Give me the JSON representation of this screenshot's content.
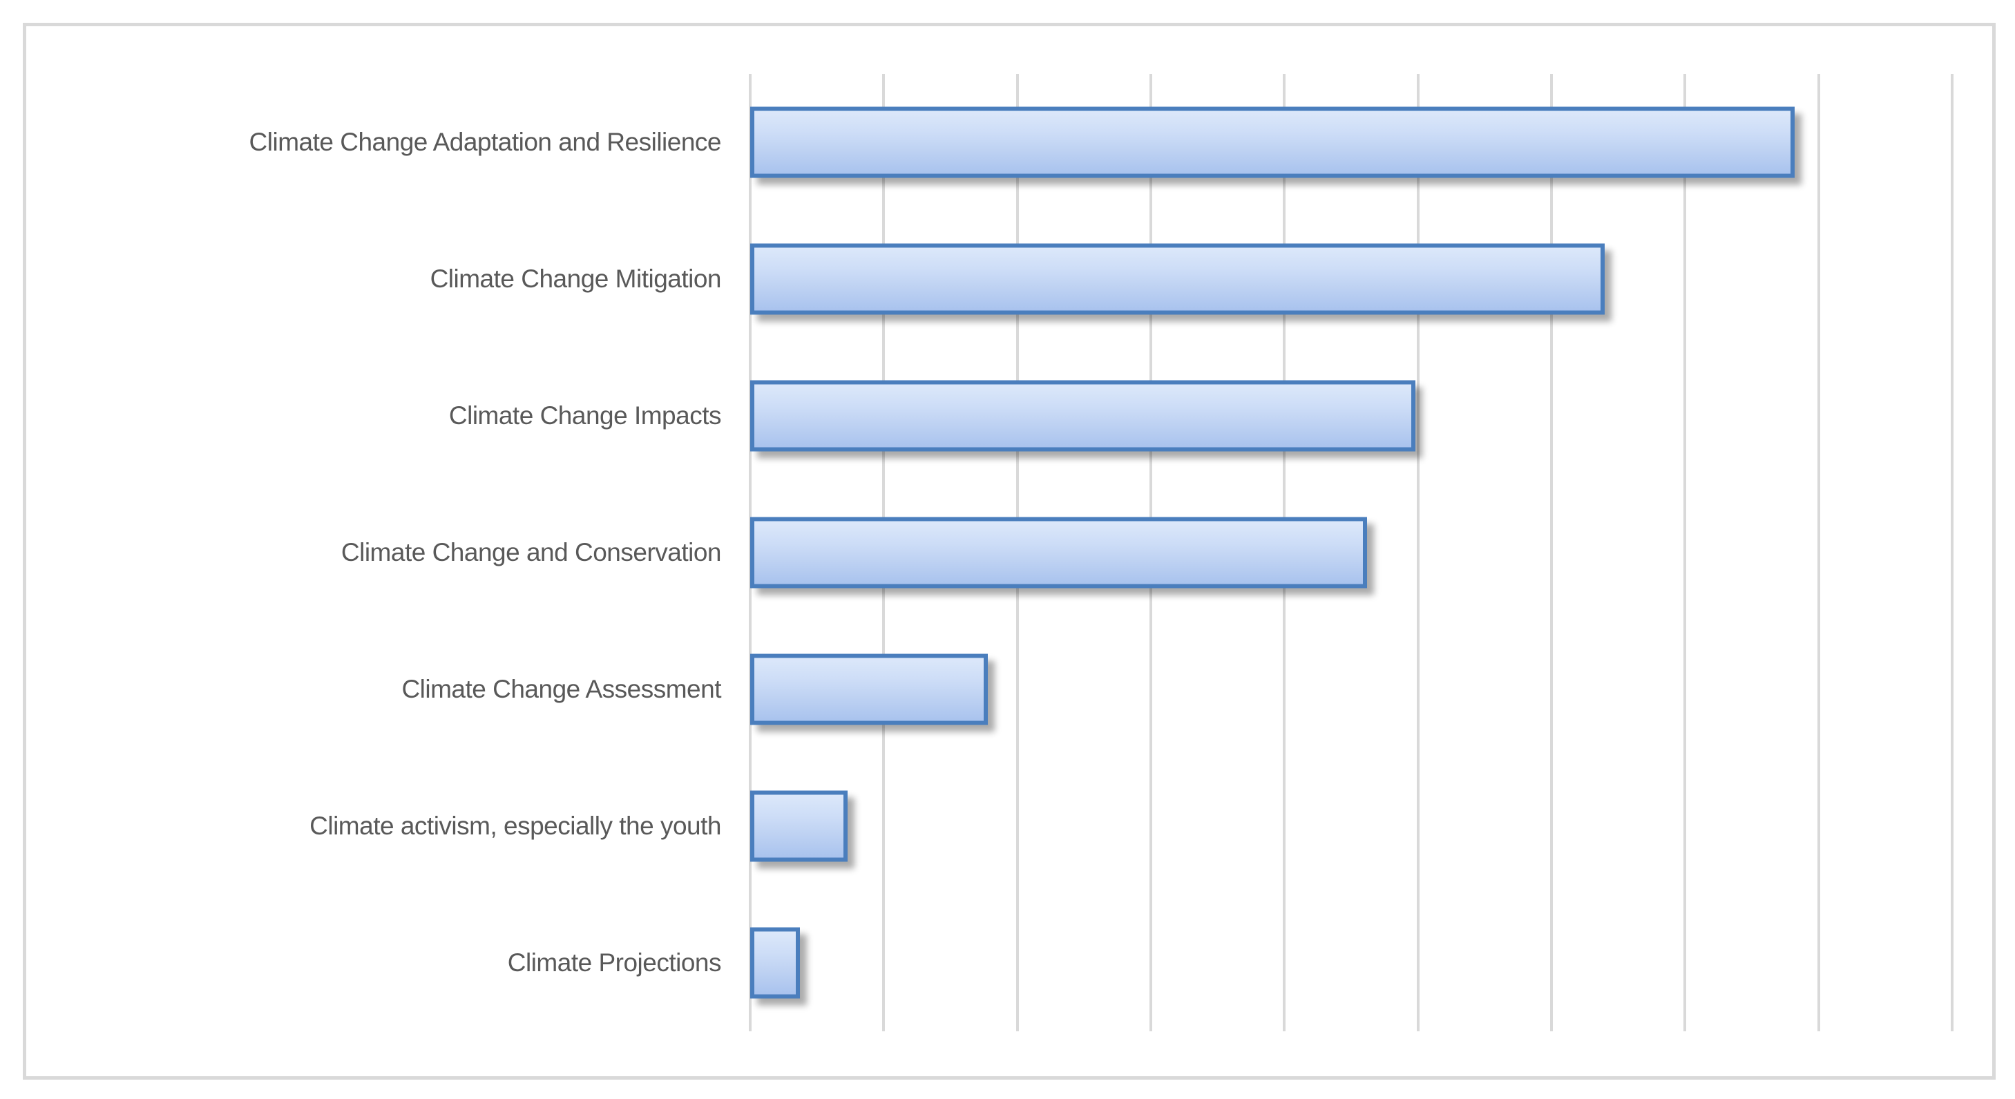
{
  "chart_data": {
    "type": "bar",
    "orientation": "horizontal",
    "title": "",
    "xlabel": "",
    "ylabel": "",
    "categories": [
      "Climate Change Adaptation and Resilience",
      "Climate Change Mitigation",
      "Climate Change Impacts",
      "Climate Change and Conservation",
      "Climate Change Assessment",
      "Climate activism, especially the youth",
      "Climate Projections"
    ],
    "values": [
      7.82,
      6.4,
      4.98,
      4.62,
      1.78,
      0.73,
      0.37
    ],
    "value_units": "relative gridline units (no numeric axis labels visible in chart)",
    "xlim": [
      0,
      9.3
    ],
    "gridline_interval": 1,
    "grid": "vertical-only",
    "axis_tick_labels_visible": false,
    "legend": "none",
    "colors": {
      "bar_border": "#4a7ebd",
      "bar_fill_top": "#dce8fa",
      "bar_fill_bottom": "#a9c3ee",
      "gridline": "#d9d9d9",
      "frame_border": "#d9d9d9",
      "label_text": "#595959",
      "background": "#ffffff"
    }
  }
}
